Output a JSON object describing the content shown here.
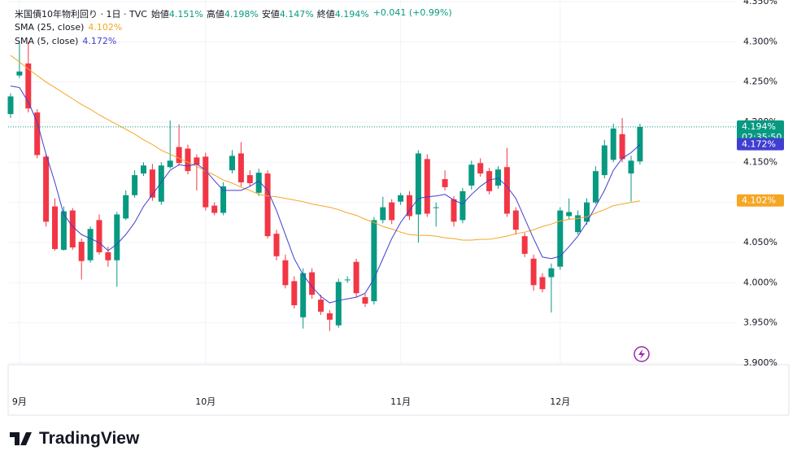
{
  "chart_data": {
    "type": "candlestick",
    "title": "米国債10年物利回り · 1日 · TVC",
    "ohlc_legend": [
      {
        "label": "始値",
        "value": "4.151%"
      },
      {
        "label": "高値",
        "value": "4.198%"
      },
      {
        "label": "安値",
        "value": "4.147%"
      },
      {
        "label": "終値",
        "value": "4.194%"
      }
    ],
    "change": "+0.041 (+0.99%)",
    "up_color": "#089981",
    "down_color": "#f23645",
    "categories": [
      null,
      "9月",
      null,
      null,
      null,
      null,
      null,
      null,
      null,
      null,
      null,
      null,
      null,
      null,
      null,
      null,
      null,
      null,
      null,
      null,
      null,
      null,
      "10月",
      null,
      null,
      null,
      null,
      null,
      null,
      null,
      null,
      null,
      null,
      null,
      null,
      null,
      null,
      null,
      null,
      null,
      null,
      null,
      null,
      null,
      "11月",
      null,
      null,
      null,
      null,
      null,
      null,
      null,
      null,
      null,
      null,
      null,
      null,
      null,
      null,
      null,
      null,
      null,
      "12月",
      null,
      null,
      null,
      null,
      null,
      null,
      null,
      null,
      null
    ],
    "open": [
      4.21,
      4.258,
      4.273,
      4.212,
      4.157,
      4.095,
      4.041,
      4.09,
      4.051,
      4.028,
      4.078,
      4.038,
      4.028,
      4.08,
      4.109,
      4.136,
      4.141,
      4.101,
      4.144,
      4.169,
      4.167,
      4.156,
      4.157,
      4.096,
      4.087,
      4.14,
      4.161,
      4.134,
      4.112,
      4.136,
      4.061,
      4.028,
      4.002,
      3.957,
      4.013,
      3.979,
      3.962,
      3.947,
      4.003,
      4.026,
      3.982,
      3.977,
      4.078,
      4.1,
      4.101,
      4.109,
      4.085,
      4.154,
      4.093,
      4.129,
      4.104,
      4.078,
      4.121,
      4.149,
      4.139,
      4.121,
      4.144,
      4.09,
      4.058,
      4.03,
      4.007,
      4.007,
      4.02,
      4.083,
      4.063,
      4.076,
      4.1,
      4.134,
      4.153,
      4.185,
      4.136,
      4.151
    ],
    "high": [
      4.236,
      4.301,
      4.3,
      4.216,
      4.16,
      4.105,
      4.095,
      4.093,
      4.055,
      4.07,
      4.085,
      4.045,
      4.088,
      4.115,
      4.14,
      4.15,
      4.148,
      4.15,
      4.202,
      4.197,
      4.172,
      4.16,
      4.162,
      4.1,
      4.125,
      4.165,
      4.175,
      4.14,
      4.142,
      4.14,
      4.066,
      4.035,
      4.008,
      4.018,
      4.018,
      3.985,
      3.966,
      4.005,
      4.008,
      4.03,
      3.986,
      4.082,
      4.107,
      4.104,
      4.112,
      4.114,
      4.165,
      4.16,
      4.1,
      4.14,
      4.108,
      4.118,
      4.152,
      4.155,
      4.143,
      4.145,
      4.168,
      4.094,
      4.062,
      4.035,
      4.012,
      4.024,
      4.094,
      4.105,
      4.09,
      4.105,
      4.145,
      4.178,
      4.198,
      4.205,
      4.158,
      4.198
    ],
    "low": [
      4.205,
      4.255,
      4.212,
      4.155,
      4.07,
      4.04,
      4.04,
      4.041,
      4.004,
      4.025,
      4.035,
      4.02,
      3.995,
      4.078,
      4.106,
      4.133,
      4.102,
      4.097,
      4.142,
      4.146,
      4.135,
      4.115,
      4.09,
      4.084,
      4.084,
      4.136,
      4.12,
      4.12,
      4.108,
      4.055,
      4.028,
      3.993,
      3.968,
      3.943,
      3.98,
      3.96,
      3.94,
      3.944,
      4.0,
      3.982,
      3.97,
      3.973,
      4.074,
      4.073,
      4.097,
      4.078,
      4.05,
      4.082,
      4.07,
      4.115,
      4.07,
      4.074,
      4.116,
      4.132,
      4.11,
      4.117,
      4.082,
      4.06,
      4.032,
      3.99,
      3.988,
      3.963,
      4.016,
      4.079,
      4.06,
      4.072,
      4.098,
      4.13,
      4.15,
      4.15,
      4.101,
      4.147
    ],
    "close": [
      4.232,
      4.263,
      4.217,
      4.159,
      4.076,
      4.042,
      4.089,
      4.044,
      4.027,
      4.067,
      4.038,
      4.028,
      4.085,
      4.109,
      4.134,
      4.146,
      4.106,
      4.146,
      4.152,
      4.149,
      4.139,
      4.147,
      4.094,
      4.087,
      4.12,
      4.158,
      4.125,
      4.124,
      4.137,
      4.058,
      4.033,
      3.997,
      3.972,
      4.012,
      3.985,
      3.964,
      3.954,
      4.001,
      4.004,
      3.987,
      3.974,
      4.078,
      4.094,
      4.078,
      4.109,
      4.083,
      4.161,
      4.086,
      4.094,
      4.119,
      4.076,
      4.114,
      4.147,
      4.136,
      4.114,
      4.141,
      4.086,
      4.066,
      4.036,
      3.997,
      3.992,
      4.018,
      4.09,
      4.088,
      4.084,
      4.1,
      4.139,
      4.171,
      4.192,
      4.154,
      4.152,
      4.194
    ],
    "series": [
      {
        "name": "SMA (25, close)",
        "value_label": "4.102%",
        "color": "#f5a623",
        "values": [
          4.283,
          4.275,
          4.266,
          4.258,
          4.25,
          4.243,
          4.236,
          4.229,
          4.222,
          4.216,
          4.209,
          4.203,
          4.197,
          4.191,
          4.185,
          4.178,
          4.172,
          4.165,
          4.16,
          4.155,
          4.15,
          4.145,
          4.139,
          4.134,
          4.128,
          4.124,
          4.119,
          4.115,
          4.11,
          4.108,
          4.107,
          4.105,
          4.103,
          4.101,
          4.098,
          4.096,
          4.094,
          4.091,
          4.087,
          4.084,
          4.079,
          4.075,
          4.07,
          4.067,
          4.063,
          4.06,
          4.059,
          4.059,
          4.058,
          4.056,
          4.055,
          4.053,
          4.053,
          4.054,
          4.054,
          4.056,
          4.058,
          4.061,
          4.063,
          4.066,
          4.07,
          4.073,
          4.077,
          4.079,
          4.08,
          4.082,
          4.087,
          4.091,
          4.096,
          4.098,
          4.1,
          4.102
        ]
      },
      {
        "name": "SMA (5, close)",
        "value_label": "4.172%",
        "color": "#3f3fd0",
        "values": [
          4.245,
          4.243,
          4.225,
          4.2,
          4.16,
          4.125,
          4.085,
          4.07,
          4.06,
          4.055,
          4.05,
          4.04,
          4.048,
          4.06,
          4.075,
          4.095,
          4.11,
          4.125,
          4.14,
          4.147,
          4.145,
          4.148,
          4.14,
          4.127,
          4.115,
          4.115,
          4.115,
          4.12,
          4.127,
          4.115,
          4.09,
          4.06,
          4.03,
          4.01,
          3.995,
          3.983,
          3.975,
          3.978,
          3.98,
          3.982,
          3.987,
          4.005,
          4.03,
          4.055,
          4.075,
          4.09,
          4.105,
          4.107,
          4.108,
          4.11,
          4.103,
          4.098,
          4.11,
          4.12,
          4.128,
          4.13,
          4.12,
          4.105,
          4.08,
          4.055,
          4.032,
          4.03,
          4.033,
          4.045,
          4.058,
          4.075,
          4.095,
          4.115,
          4.14,
          4.155,
          4.162,
          4.172
        ]
      }
    ],
    "price_labels": [
      {
        "value": 4.194,
        "label": "4.194%",
        "sublabel": "02:35:50",
        "color": "#089981"
      },
      {
        "value": 4.172,
        "label": "4.172%",
        "color": "#3f3fd0"
      },
      {
        "value": 4.102,
        "label": "4.102%",
        "color": "#f5a623"
      }
    ],
    "ylim": [
      3.898,
      4.352
    ],
    "yticks": [
      {
        "value": 3.9,
        "label": "3.900%"
      },
      {
        "value": 3.95,
        "label": "3.950%"
      },
      {
        "value": 4.0,
        "label": "4.000%"
      },
      {
        "value": 4.05,
        "label": "4.050%"
      },
      {
        "value": 4.1,
        "label": "4.100%"
      },
      {
        "value": 4.15,
        "label": "4.150%"
      },
      {
        "value": 4.2,
        "label": "4.200%"
      },
      {
        "value": 4.25,
        "label": "4.250%"
      },
      {
        "value": 4.3,
        "label": "4.300%"
      },
      {
        "value": 4.35,
        "label": "4.350%"
      }
    ],
    "grid": true,
    "brand": "TradingView"
  }
}
